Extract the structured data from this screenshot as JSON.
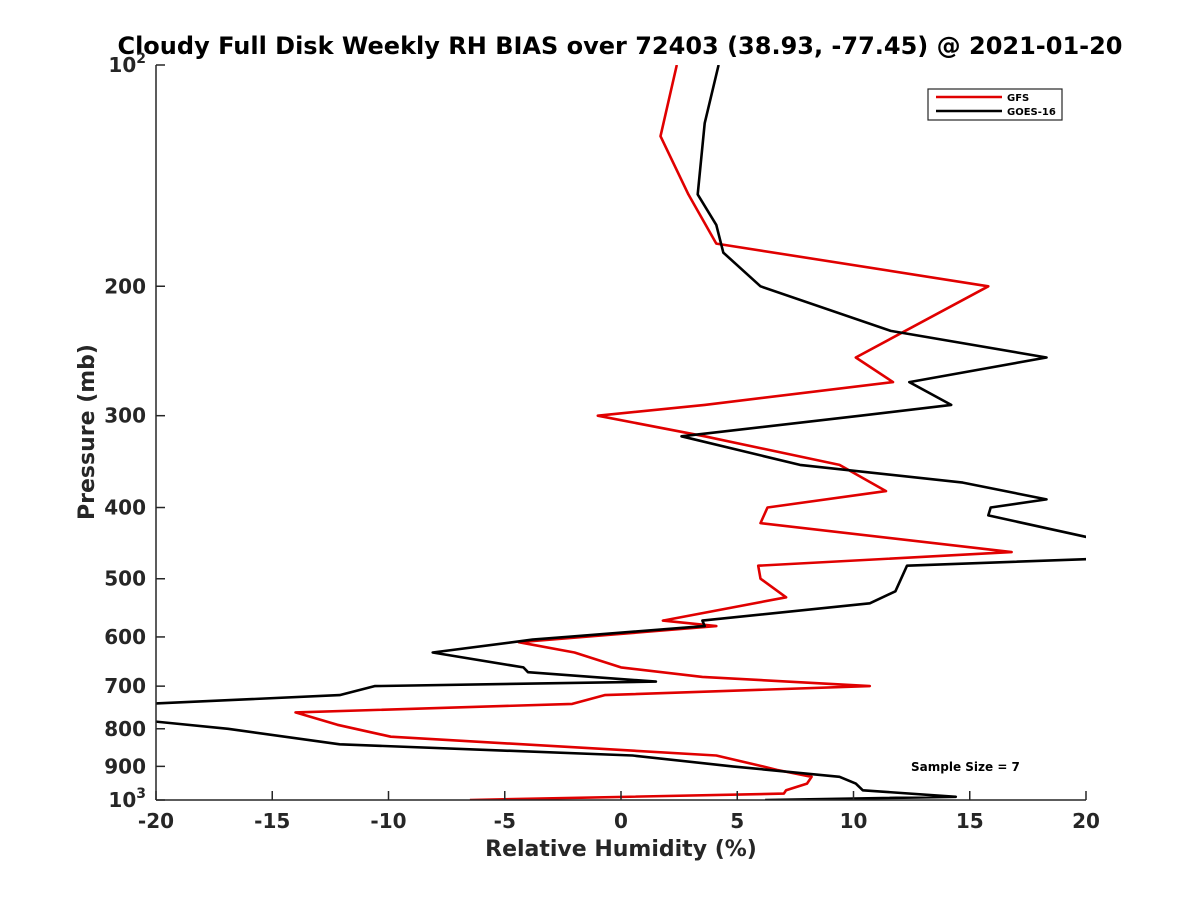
{
  "chart_data": {
    "type": "line",
    "title": "Cloudy Full Disk Weekly RH BIAS over 72403 (38.93, -77.45) @ 2021-01-20",
    "xlabel": "Relative Humidity (%)",
    "ylabel": "Pressure (mb)",
    "xlim": [
      -20,
      20
    ],
    "ylim": [
      100,
      1000
    ],
    "y_scale": "log",
    "y_reversed": true,
    "grid": false,
    "legend_position": "top-right",
    "annotation": "Sample Size = 7",
    "x_ticks": [
      "-20",
      "-15",
      "-10",
      "-5",
      "0",
      "5",
      "10",
      "15",
      "20"
    ],
    "y_ticks": [
      {
        "base": "10",
        "exp": "2"
      },
      {
        "base": "200",
        "exp": ""
      },
      {
        "base": "300",
        "exp": ""
      },
      {
        "base": "400",
        "exp": ""
      },
      {
        "base": "500",
        "exp": ""
      },
      {
        "base": "600",
        "exp": ""
      },
      {
        "base": "700",
        "exp": ""
      },
      {
        "base": "800",
        "exp": ""
      },
      {
        "base": "900",
        "exp": ""
      },
      {
        "base": "10",
        "exp": "3"
      }
    ],
    "series": [
      {
        "name": "GFS",
        "color": "#e00000",
        "x": [
          2.4,
          1.7,
          2.9,
          4.1,
          15.8,
          10.1,
          11.7,
          3.6,
          -1.0,
          3.6,
          9.4,
          11.4,
          6.3,
          6.0,
          16.8,
          5.9,
          6.0,
          7.1,
          1.8,
          4.1,
          -4.4,
          -2.0,
          0.0,
          3.5,
          10.7,
          -0.7,
          -2.1,
          -14.0,
          -12.2,
          -9.9,
          4.1,
          6.1,
          6.7,
          8.2,
          8.0,
          7.1,
          7.0,
          -6.5
        ],
        "y": [
          100,
          125,
          150,
          175,
          200,
          250,
          270,
          290,
          300,
          320,
          350,
          380,
          400,
          420,
          460,
          480,
          500,
          530,
          570,
          580,
          610,
          630,
          660,
          680,
          700,
          720,
          740,
          760,
          790,
          820,
          870,
          900,
          910,
          930,
          950,
          970,
          980,
          1000
        ]
      },
      {
        "name": "GOES-16",
        "color": "#000000",
        "x": [
          4.2,
          3.6,
          3.3,
          4.1,
          4.4,
          6.0,
          11.6,
          18.3,
          12.4,
          14.2,
          10.3,
          2.6,
          7.7,
          14.7,
          18.3,
          15.9,
          15.8,
          20.2,
          20.2,
          12.3,
          11.8,
          10.7,
          3.5,
          3.6,
          -3.8,
          -8.1,
          -4.2,
          -4.0,
          1.5,
          -10.6,
          -12.1,
          -20.4,
          -20.4,
          -16.9,
          -12.1,
          0.5,
          4.8,
          9.4,
          10.1,
          10.4,
          14.4,
          6.2
        ],
        "y": [
          100,
          120,
          150,
          165,
          180,
          200,
          230,
          250,
          270,
          290,
          300,
          320,
          350,
          370,
          390,
          400,
          410,
          440,
          470,
          480,
          520,
          540,
          570,
          580,
          605,
          630,
          660,
          670,
          690,
          700,
          720,
          740,
          780,
          800,
          840,
          870,
          900,
          930,
          950,
          970,
          990,
          1000
        ]
      }
    ]
  }
}
